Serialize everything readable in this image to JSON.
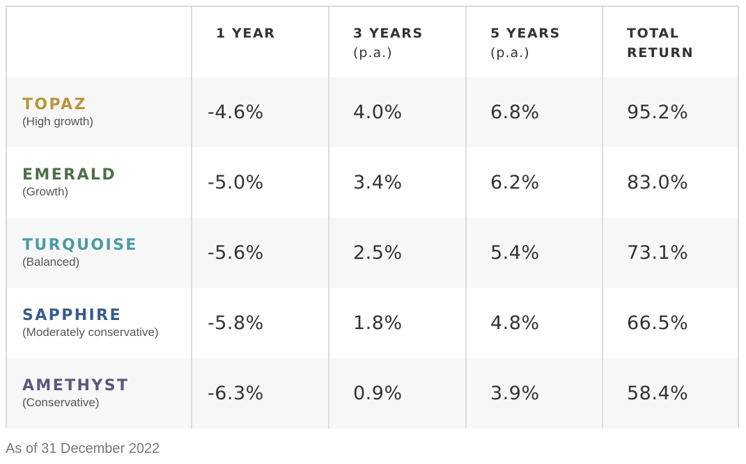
{
  "header": {
    "col1": "1 YEAR",
    "col2": "3 YEARS",
    "col2_sub": "(p.a.)",
    "col3": "5 YEARS",
    "col3_sub": "(p.a.)",
    "col4_line1": "TOTAL",
    "col4_line2": "RETURN"
  },
  "rows": [
    {
      "name": "TOPAZ",
      "desc": "(High growth)",
      "color": "#b7963e",
      "one_year": "-4.6%",
      "three_years": "4.0%",
      "five_years": "6.8%",
      "total": "95.2%"
    },
    {
      "name": "EMERALD",
      "desc": "(Growth)",
      "color": "#4e7148",
      "one_year": "-5.0%",
      "three_years": "3.4%",
      "five_years": "6.2%",
      "total": "83.0%"
    },
    {
      "name": "TURQUOISE",
      "desc": "(Balanced)",
      "color": "#4a9aa6",
      "one_year": "-5.6%",
      "three_years": "2.5%",
      "five_years": "5.4%",
      "total": "73.1%"
    },
    {
      "name": "SAPPHIRE",
      "desc": "(Moderately conservative)",
      "color": "#365b8c",
      "one_year": "-5.8%",
      "three_years": "1.8%",
      "five_years": "4.8%",
      "total": "66.5%"
    },
    {
      "name": "AMETHYST",
      "desc": "(Conservative)",
      "color": "#5f547f",
      "one_year": "-6.3%",
      "three_years": "0.9%",
      "five_years": "3.9%",
      "total": "58.4%"
    }
  ],
  "footnote": "As of 31 December 2022"
}
